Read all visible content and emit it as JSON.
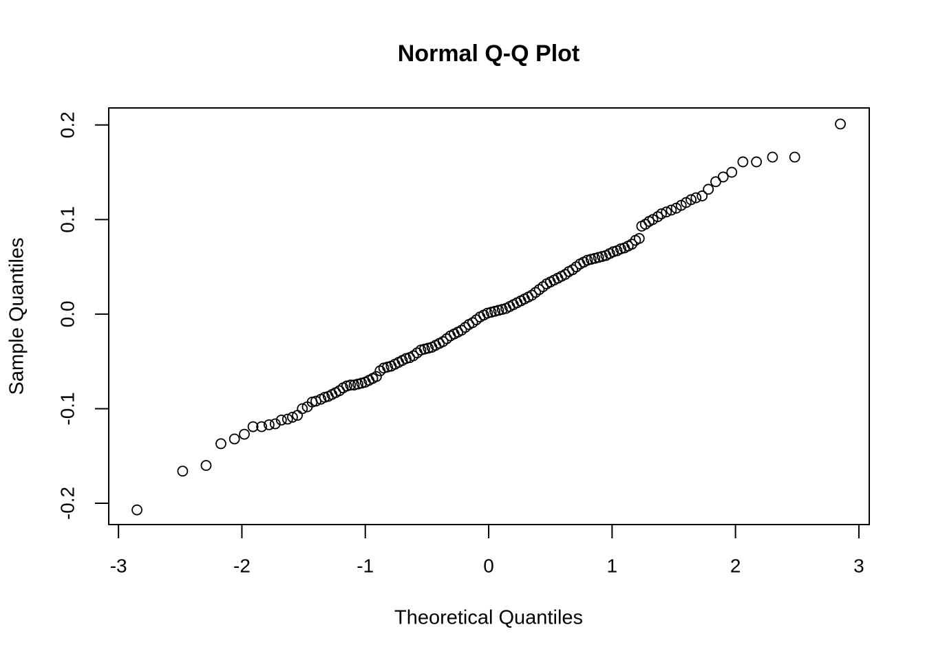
{
  "chart_data": {
    "type": "scatter",
    "title": "Normal Q-Q Plot",
    "x_label": "Theoretical Quantiles",
    "y_label": "Sample Quantiles",
    "color": "#000000",
    "xlim": [
      -3.079,
      3.084
    ],
    "ylim": [
      -0.2225,
      0.218
    ],
    "xticks": [
      -3,
      -2,
      -1,
      0,
      1,
      2,
      3
    ],
    "yticks": [
      -0.2,
      -0.1,
      {
        "value": 0,
        "label": "0.0"
      },
      0.1,
      0.2
    ],
    "x": [
      -2.85,
      -2.48,
      -2.29,
      -2.17,
      -2.06,
      -1.98,
      -1.91,
      -1.84,
      -1.78,
      -1.73,
      -1.68,
      -1.63,
      -1.59,
      -1.55,
      -1.51,
      -1.47,
      -1.43,
      -1.4,
      -1.36,
      -1.33,
      -1.3,
      -1.27,
      -1.24,
      -1.21,
      -1.18,
      -1.15,
      -1.12,
      -1.09,
      -1.06,
      -1.03,
      -1.0,
      -0.97,
      -0.94,
      -0.91,
      -0.88,
      -0.85,
      -0.82,
      -0.79,
      -0.76,
      -0.73,
      -0.7,
      -0.67,
      -0.64,
      -0.61,
      -0.58,
      -0.55,
      -0.52,
      -0.49,
      -0.46,
      -0.43,
      -0.4,
      -0.37,
      -0.34,
      -0.31,
      -0.28,
      -0.25,
      -0.22,
      -0.19,
      -0.16,
      -0.13,
      -0.1,
      -0.07,
      -0.04,
      -0.01,
      0.02,
      0.05,
      0.08,
      0.11,
      0.14,
      0.17,
      0.2,
      0.23,
      0.26,
      0.29,
      0.32,
      0.35,
      0.38,
      0.41,
      0.44,
      0.47,
      0.5,
      0.53,
      0.56,
      0.59,
      0.62,
      0.65,
      0.68,
      0.71,
      0.74,
      0.77,
      0.8,
      0.83,
      0.86,
      0.89,
      0.92,
      0.95,
      0.98,
      1.01,
      1.04,
      1.07,
      1.1,
      1.13,
      1.16,
      1.19,
      1.22,
      1.24,
      1.27,
      1.3,
      1.33,
      1.37,
      1.4,
      1.44,
      1.48,
      1.52,
      1.56,
      1.6,
      1.64,
      1.68,
      1.73,
      1.78,
      1.84,
      1.9,
      1.97,
      2.06,
      2.17,
      2.3,
      2.48,
      2.85
    ],
    "values": [
      -0.207,
      -0.166,
      -0.16,
      -0.137,
      -0.132,
      -0.127,
      -0.119,
      -0.119,
      -0.117,
      -0.116,
      -0.112,
      -0.111,
      -0.109,
      -0.107,
      -0.1,
      -0.098,
      -0.093,
      -0.092,
      -0.09,
      -0.088,
      -0.087,
      -0.085,
      -0.083,
      -0.081,
      -0.078,
      -0.076,
      -0.075,
      -0.075,
      -0.074,
      -0.073,
      -0.072,
      -0.07,
      -0.068,
      -0.066,
      -0.06,
      -0.057,
      -0.056,
      -0.055,
      -0.053,
      -0.051,
      -0.049,
      -0.047,
      -0.046,
      -0.044,
      -0.041,
      -0.038,
      -0.037,
      -0.036,
      -0.035,
      -0.033,
      -0.031,
      -0.029,
      -0.026,
      -0.023,
      -0.021,
      -0.019,
      -0.017,
      -0.014,
      -0.011,
      -0.009,
      -0.006,
      -0.003,
      -0.001,
      0.001,
      0.002,
      0.003,
      0.004,
      0.005,
      0.006,
      0.008,
      0.01,
      0.012,
      0.014,
      0.016,
      0.018,
      0.02,
      0.023,
      0.026,
      0.029,
      0.032,
      0.034,
      0.036,
      0.038,
      0.04,
      0.042,
      0.045,
      0.047,
      0.05,
      0.053,
      0.055,
      0.057,
      0.058,
      0.059,
      0.06,
      0.061,
      0.062,
      0.064,
      0.066,
      0.067,
      0.069,
      0.07,
      0.072,
      0.074,
      0.078,
      0.08,
      0.093,
      0.095,
      0.098,
      0.1,
      0.103,
      0.106,
      0.108,
      0.11,
      0.112,
      0.115,
      0.118,
      0.121,
      0.123,
      0.125,
      0.132,
      0.14,
      0.145,
      0.15,
      0.161,
      0.161,
      0.166,
      0.166,
      0.201
    ]
  }
}
